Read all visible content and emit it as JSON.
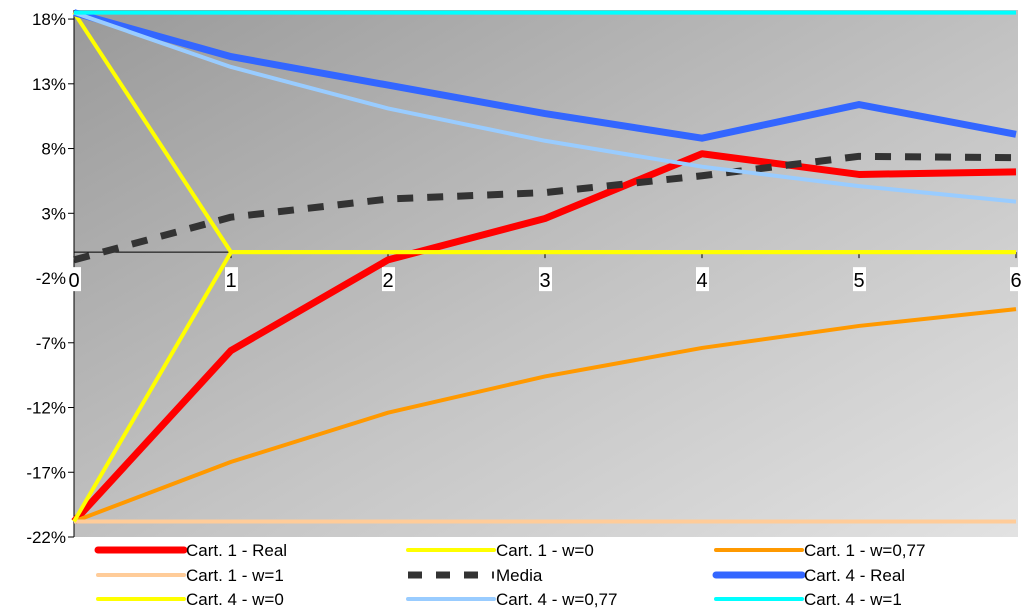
{
  "chart_data": {
    "type": "line",
    "title": "",
    "xlabel": "",
    "ylabel": "",
    "x": [
      0,
      1,
      2,
      3,
      4,
      5,
      6
    ],
    "x_tick_labels": [
      "0",
      "1",
      "2",
      "3",
      "4",
      "5",
      "6"
    ],
    "y_tick_values": [
      18,
      13,
      8,
      3,
      -2,
      -7,
      -12,
      -17,
      -22
    ],
    "y_tick_labels": [
      "18%",
      "13%",
      "8%",
      "3%",
      "-2%",
      "-7%",
      "-12%",
      "-17%",
      "-22%"
    ],
    "ylim": [
      -22,
      18.7
    ],
    "xlim": [
      0,
      6
    ],
    "grid": false,
    "legend_position": "bottom",
    "series": [
      {
        "name": "Cart. 1 - Real",
        "color": "#ff0000",
        "style": "solid",
        "width": 7,
        "values": [
          -20.8,
          -7.6,
          -0.6,
          2.6,
          7.6,
          6.0,
          6.2
        ]
      },
      {
        "name": "Cart. 1 - w=0",
        "color": "#ffff00",
        "style": "solid",
        "width": 4,
        "values": [
          18.5,
          0.0,
          0.0,
          0.0,
          0.0,
          0.0,
          0.0
        ]
      },
      {
        "name": "Cart. 1 - w=0,77",
        "color": "#ff9900",
        "style": "solid",
        "width": 4,
        "values": [
          -20.8,
          -16.2,
          -12.4,
          -9.6,
          -7.4,
          -5.7,
          -4.4
        ]
      },
      {
        "name": "Cart. 1 - w=1",
        "color": "#ffcc99",
        "style": "solid",
        "width": 4,
        "values": [
          -20.8,
          -20.8,
          -20.8,
          -20.8,
          -20.8,
          -20.8,
          -20.8
        ]
      },
      {
        "name": "Media",
        "color": "#333333",
        "style": "dashed",
        "width": 7,
        "values": [
          -0.6,
          2.7,
          4.1,
          4.6,
          5.9,
          7.4,
          7.3
        ]
      },
      {
        "name": "Cart. 4 - Real",
        "color": "#3366ff",
        "style": "solid",
        "width": 7,
        "values": [
          18.5,
          15.1,
          12.9,
          10.7,
          8.8,
          11.4,
          9.1
        ]
      },
      {
        "name": "Cart. 4 - w=0",
        "color": "#ffff00",
        "style": "solid",
        "width": 4,
        "values": [
          -20.8,
          0.0,
          0.0,
          0.0,
          0.0,
          0.0,
          0.0
        ]
      },
      {
        "name": "Cart. 4 - w=0,77",
        "color": "#99ccff",
        "style": "solid",
        "width": 4,
        "values": [
          18.5,
          14.3,
          11.1,
          8.6,
          6.6,
          5.1,
          3.9
        ]
      },
      {
        "name": "Cart. 4 - w=1",
        "color": "#00ffff",
        "style": "solid",
        "width": 4,
        "values": [
          18.5,
          18.5,
          18.5,
          18.5,
          18.5,
          18.5,
          18.5
        ]
      }
    ]
  }
}
